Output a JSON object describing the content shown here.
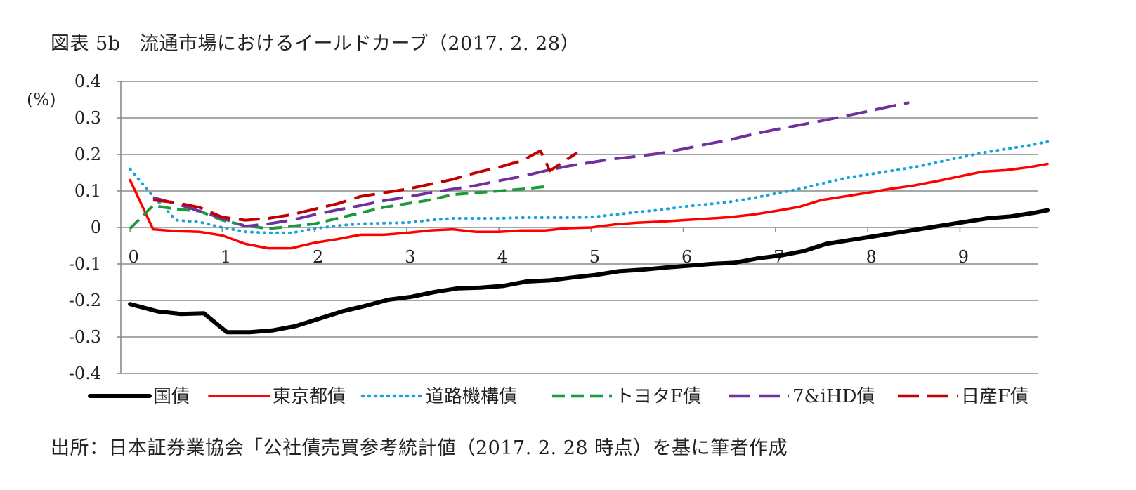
{
  "title": "図表 5b　流通市場におけるイールドカーブ（2017. 2. 28）",
  "source": "出所：日本証券業協会「公社債売買参考統計値（2017. 2. 28 時点）を基に筆者作成",
  "chart_data": {
    "type": "line",
    "ylabel": "(%)",
    "ylim": [
      -0.4,
      0.4
    ],
    "xlim": [
      -0.1,
      9.85
    ],
    "yticks": [
      "0.4",
      "0.3",
      "0.2",
      "0.1",
      "0",
      "-0.1",
      "-0.2",
      "-0.3",
      "-0.4"
    ],
    "xticks": [
      "0",
      "1",
      "2",
      "3",
      "4",
      "5",
      "6",
      "7",
      "8",
      "9"
    ],
    "grid": "horizontal",
    "legend_position": "bottom",
    "series": [
      {
        "name": "国債",
        "color": "#000000",
        "style": "solid",
        "width": 6,
        "points": [
          [
            0.0,
            -0.21
          ],
          [
            0.3,
            -0.23
          ],
          [
            0.55,
            -0.237
          ],
          [
            0.8,
            -0.235
          ],
          [
            1.05,
            -0.287
          ],
          [
            1.3,
            -0.287
          ],
          [
            1.55,
            -0.282
          ],
          [
            1.8,
            -0.27
          ],
          [
            2.05,
            -0.25
          ],
          [
            2.3,
            -0.23
          ],
          [
            2.55,
            -0.215
          ],
          [
            2.8,
            -0.198
          ],
          [
            3.05,
            -0.19
          ],
          [
            3.3,
            -0.177
          ],
          [
            3.55,
            -0.167
          ],
          [
            3.8,
            -0.165
          ],
          [
            4.05,
            -0.16
          ],
          [
            4.3,
            -0.148
          ],
          [
            4.55,
            -0.145
          ],
          [
            4.8,
            -0.137
          ],
          [
            5.05,
            -0.13
          ],
          [
            5.3,
            -0.12
          ],
          [
            5.55,
            -0.116
          ],
          [
            5.8,
            -0.11
          ],
          [
            6.05,
            -0.105
          ],
          [
            6.3,
            -0.1
          ],
          [
            6.55,
            -0.097
          ],
          [
            6.8,
            -0.085
          ],
          [
            7.05,
            -0.077
          ],
          [
            7.3,
            -0.065
          ],
          [
            7.55,
            -0.045
          ],
          [
            7.8,
            -0.035
          ],
          [
            8.05,
            -0.025
          ],
          [
            8.3,
            -0.015
          ],
          [
            8.55,
            -0.005
          ],
          [
            8.8,
            0.005
          ],
          [
            9.05,
            0.015
          ],
          [
            9.3,
            0.025
          ],
          [
            9.55,
            0.03
          ],
          [
            9.8,
            0.04
          ],
          [
            9.95,
            0.047
          ]
        ]
      },
      {
        "name": "東京都債",
        "color": "#ff0000",
        "style": "solid",
        "width": 3.5,
        "points": [
          [
            0.0,
            0.13
          ],
          [
            0.25,
            -0.005
          ],
          [
            0.5,
            -0.01
          ],
          [
            0.75,
            -0.012
          ],
          [
            1.0,
            -0.022
          ],
          [
            1.25,
            -0.045
          ],
          [
            1.5,
            -0.057
          ],
          [
            1.75,
            -0.057
          ],
          [
            2.0,
            -0.042
          ],
          [
            2.25,
            -0.032
          ],
          [
            2.5,
            -0.02
          ],
          [
            2.75,
            -0.02
          ],
          [
            3.0,
            -0.015
          ],
          [
            3.25,
            -0.008
          ],
          [
            3.5,
            -0.005
          ],
          [
            3.75,
            -0.012
          ],
          [
            4.0,
            -0.012
          ],
          [
            4.25,
            -0.008
          ],
          [
            4.5,
            -0.008
          ],
          [
            4.75,
            -0.002
          ],
          [
            5.0,
            0.0
          ],
          [
            5.25,
            0.008
          ],
          [
            5.5,
            0.013
          ],
          [
            5.75,
            0.016
          ],
          [
            6.0,
            0.02
          ],
          [
            6.25,
            0.024
          ],
          [
            6.5,
            0.028
          ],
          [
            6.75,
            0.035
          ],
          [
            7.0,
            0.045
          ],
          [
            7.25,
            0.056
          ],
          [
            7.5,
            0.075
          ],
          [
            7.75,
            0.085
          ],
          [
            8.0,
            0.095
          ],
          [
            8.25,
            0.106
          ],
          [
            8.5,
            0.115
          ],
          [
            8.75,
            0.127
          ],
          [
            9.0,
            0.14
          ],
          [
            9.25,
            0.153
          ],
          [
            9.5,
            0.157
          ],
          [
            9.75,
            0.165
          ],
          [
            9.95,
            0.174
          ]
        ]
      },
      {
        "name": "道路機構債",
        "color": "#1aa3d9",
        "style": "dotted",
        "width": 4,
        "points": [
          [
            0.0,
            0.16
          ],
          [
            0.25,
            0.085
          ],
          [
            0.5,
            0.02
          ],
          [
            0.75,
            0.015
          ],
          [
            1.0,
            0.0
          ],
          [
            1.25,
            -0.012
          ],
          [
            1.5,
            -0.015
          ],
          [
            1.75,
            -0.015
          ],
          [
            2.0,
            -0.003
          ],
          [
            2.25,
            0.005
          ],
          [
            2.5,
            0.01
          ],
          [
            2.75,
            0.012
          ],
          [
            3.0,
            0.013
          ],
          [
            3.25,
            0.02
          ],
          [
            3.5,
            0.025
          ],
          [
            3.75,
            0.025
          ],
          [
            4.0,
            0.025
          ],
          [
            4.25,
            0.027
          ],
          [
            4.5,
            0.027
          ],
          [
            4.75,
            0.027
          ],
          [
            5.0,
            0.028
          ],
          [
            5.25,
            0.035
          ],
          [
            5.5,
            0.042
          ],
          [
            5.75,
            0.048
          ],
          [
            6.0,
            0.057
          ],
          [
            6.25,
            0.063
          ],
          [
            6.5,
            0.07
          ],
          [
            6.75,
            0.08
          ],
          [
            7.0,
            0.093
          ],
          [
            7.25,
            0.105
          ],
          [
            7.5,
            0.12
          ],
          [
            7.75,
            0.135
          ],
          [
            8.0,
            0.145
          ],
          [
            8.25,
            0.155
          ],
          [
            8.5,
            0.165
          ],
          [
            8.75,
            0.178
          ],
          [
            9.0,
            0.192
          ],
          [
            9.25,
            0.205
          ],
          [
            9.5,
            0.215
          ],
          [
            9.75,
            0.225
          ],
          [
            9.95,
            0.235
          ]
        ]
      },
      {
        "name": "トヨタF債",
        "color": "#1a9a3c",
        "style": "dashed",
        "width": 4,
        "points": [
          [
            0.0,
            -0.003
          ],
          [
            0.25,
            0.06
          ],
          [
            0.5,
            0.05
          ],
          [
            0.75,
            0.045
          ],
          [
            1.0,
            0.02
          ],
          [
            1.25,
            0.005
          ],
          [
            1.5,
            -0.003
          ],
          [
            1.75,
            0.003
          ],
          [
            2.0,
            0.01
          ],
          [
            2.25,
            0.025
          ],
          [
            2.5,
            0.04
          ],
          [
            2.75,
            0.055
          ],
          [
            3.0,
            0.065
          ],
          [
            3.25,
            0.075
          ],
          [
            3.5,
            0.09
          ],
          [
            3.75,
            0.095
          ],
          [
            4.0,
            0.1
          ],
          [
            4.25,
            0.105
          ],
          [
            4.5,
            0.112
          ],
          [
            4.55,
            0.118
          ]
        ]
      },
      {
        "name": "7&iHD債",
        "color": "#7030a0",
        "style": "dashed-long",
        "width": 4,
        "points": [
          [
            0.25,
            0.082
          ],
          [
            0.5,
            0.065
          ],
          [
            0.75,
            0.045
          ],
          [
            1.0,
            0.025
          ],
          [
            1.25,
            0.003
          ],
          [
            1.5,
            0.01
          ],
          [
            1.75,
            0.02
          ],
          [
            2.0,
            0.035
          ],
          [
            2.25,
            0.048
          ],
          [
            2.5,
            0.06
          ],
          [
            2.75,
            0.073
          ],
          [
            3.0,
            0.083
          ],
          [
            3.25,
            0.095
          ],
          [
            3.5,
            0.105
          ],
          [
            3.75,
            0.115
          ],
          [
            4.0,
            0.128
          ],
          [
            4.25,
            0.14
          ],
          [
            4.5,
            0.155
          ],
          [
            4.75,
            0.168
          ],
          [
            5.0,
            0.178
          ],
          [
            5.25,
            0.188
          ],
          [
            5.5,
            0.195
          ],
          [
            5.75,
            0.203
          ],
          [
            6.0,
            0.215
          ],
          [
            6.25,
            0.228
          ],
          [
            6.5,
            0.24
          ],
          [
            6.75,
            0.255
          ],
          [
            7.0,
            0.268
          ],
          [
            7.25,
            0.28
          ],
          [
            7.5,
            0.292
          ],
          [
            7.75,
            0.305
          ],
          [
            8.0,
            0.318
          ],
          [
            8.25,
            0.332
          ],
          [
            8.45,
            0.342
          ]
        ]
      },
      {
        "name": "日産F債",
        "color": "#c00000",
        "style": "dashed-long",
        "width": 4,
        "points": [
          [
            0.25,
            0.075
          ],
          [
            0.5,
            0.068
          ],
          [
            0.75,
            0.055
          ],
          [
            1.0,
            0.028
          ],
          [
            1.25,
            0.02
          ],
          [
            1.5,
            0.025
          ],
          [
            1.75,
            0.035
          ],
          [
            2.0,
            0.05
          ],
          [
            2.25,
            0.065
          ],
          [
            2.5,
            0.085
          ],
          [
            2.75,
            0.095
          ],
          [
            3.0,
            0.105
          ],
          [
            3.25,
            0.118
          ],
          [
            3.5,
            0.132
          ],
          [
            3.75,
            0.15
          ],
          [
            4.0,
            0.165
          ],
          [
            4.25,
            0.183
          ],
          [
            4.45,
            0.21
          ],
          [
            4.5,
            0.185
          ],
          [
            4.55,
            0.155
          ],
          [
            4.7,
            0.18
          ],
          [
            4.85,
            0.205
          ]
        ]
      }
    ]
  }
}
